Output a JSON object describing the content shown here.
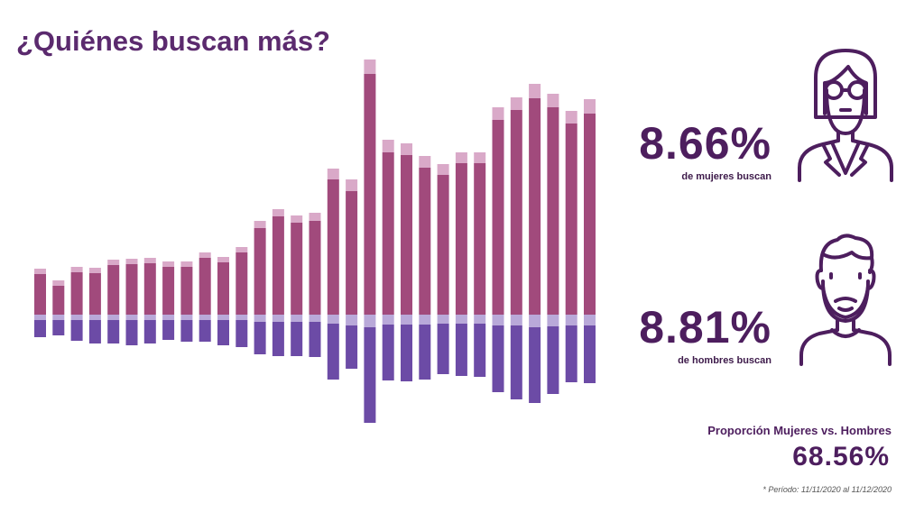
{
  "title": "¿Quiénes buscan más?",
  "women": {
    "pct": "8.66%",
    "label": "de mujeres buscan",
    "icon": "woman-avatar-icon"
  },
  "men": {
    "pct": "8.81%",
    "label": "de hombres buscan",
    "icon": "man-avatar-icon"
  },
  "ratio": {
    "label": "Proporción Mujeres vs. Hombres",
    "value": "68.56%"
  },
  "period": "* Período: 11/11/2020 al 11/12/2020",
  "colors": {
    "title": "#5b2a6e",
    "women_bar": "#a14a7c",
    "women_light": "#d9a9c8",
    "men_light": "#b9a9d9",
    "men_bar": "#6c4ba6",
    "icon_stroke": "#4d1e5e"
  },
  "chart_data": {
    "type": "bar",
    "stacked_diverging": true,
    "series": [
      {
        "name": "",
        "values": [
          45,
          32,
          47,
          46,
          55,
          56,
          57,
          53,
          53,
          63,
          58,
          69,
          96,
          109,
          102,
          104,
          150,
          137,
          267,
          180,
          177,
          163,
          155,
          168,
          168,
          216,
          227,
          240,
          230,
          212,
          223
        ]
      },
      {
        "name": "",
        "values": [
          6,
          6,
          6,
          6,
          6,
          6,
          6,
          6,
          6,
          6,
          6,
          6,
          8,
          8,
          8,
          9,
          12,
          13,
          16,
          14,
          13,
          13,
          12,
          12,
          12,
          14,
          14,
          16,
          15,
          14,
          16
        ]
      },
      {
        "name": "",
        "values": [
          -6,
          -6,
          -6,
          -6,
          -6,
          -6,
          -6,
          -6,
          -6,
          -6,
          -6,
          -6,
          -8,
          -8,
          -8,
          -8,
          -10,
          -12,
          -14,
          -11,
          -11,
          -11,
          -10,
          -10,
          -10,
          -12,
          -12,
          -14,
          -13,
          -12,
          -12
        ]
      },
      {
        "name": "",
        "values": [
          -19,
          -17,
          -23,
          -26,
          -26,
          -28,
          -26,
          -22,
          -24,
          -24,
          -28,
          -30,
          -36,
          -38,
          -38,
          -39,
          -62,
          -48,
          -106,
          -62,
          -63,
          -61,
          -56,
          -58,
          -59,
          -74,
          -82,
          -84,
          -75,
          -63,
          -64
        ]
      }
    ]
  }
}
